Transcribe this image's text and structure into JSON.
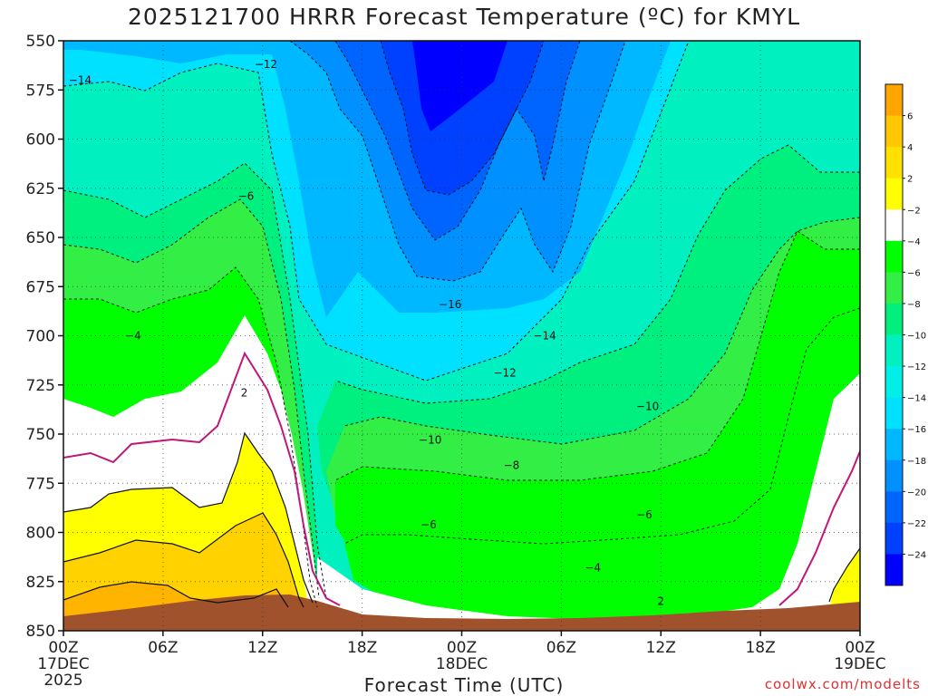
{
  "title": "2025121700 HRRR Forecast Temperature (ºC) for KMYL",
  "xlabel": "Forecast Time (UTC)",
  "credit": "coolwx.com/modelts",
  "colors": {
    "ground": "#a0522d",
    "frame": "#111111",
    "credit": "#e03030",
    "freezing_line": "#c0177a"
  },
  "chart_data": {
    "type": "heatmap",
    "title": "2025121700 HRRR Forecast Temperature (ºC) for KMYL",
    "xlabel": "Forecast Time (UTC)",
    "ylabel": "",
    "y_axis": "pressure (hPa), inverted",
    "ylim": [
      850,
      550
    ],
    "y_ticks": [
      550,
      575,
      600,
      625,
      650,
      675,
      700,
      725,
      750,
      775,
      800,
      825,
      850
    ],
    "x_ticks": [
      {
        "hour": 0,
        "label": "00Z",
        "sub": "17DEC",
        "sub2": "2025"
      },
      {
        "hour": 6,
        "label": "06Z",
        "sub": "",
        "sub2": ""
      },
      {
        "hour": 12,
        "label": "12Z",
        "sub": "",
        "sub2": ""
      },
      {
        "hour": 18,
        "label": "18Z",
        "sub": "",
        "sub2": ""
      },
      {
        "hour": 24,
        "label": "00Z",
        "sub": "18DEC",
        "sub2": ""
      },
      {
        "hour": 30,
        "label": "06Z",
        "sub": "",
        "sub2": ""
      },
      {
        "hour": 36,
        "label": "12Z",
        "sub": "",
        "sub2": ""
      },
      {
        "hour": 42,
        "label": "18Z",
        "sub": "",
        "sub2": ""
      },
      {
        "hour": 48,
        "label": "00Z",
        "sub": "19DEC",
        "sub2": ""
      }
    ],
    "xlim": [
      0,
      48
    ],
    "grid": true,
    "colorbar": {
      "position": "right",
      "labels": [
        "6",
        "4",
        "2",
        "−2",
        "−4",
        "−6",
        "−8",
        "−10",
        "−12",
        "−14",
        "−16",
        "−18",
        "−20",
        "−22",
        "−24"
      ],
      "colors": [
        "#ffa500",
        "#ffc800",
        "#ffe100",
        "#ffff00",
        "#ffffff",
        "#00ff00",
        "#33ee44",
        "#00f080",
        "#00f0c0",
        "#00f0e8",
        "#00e0ff",
        "#00b8ff",
        "#0090ff",
        "#0064ff",
        "#0040ff",
        "#0000ff"
      ]
    },
    "contour_labels": [
      {
        "text": "−14",
        "hour": 1.0,
        "p": 570
      },
      {
        "text": "−12",
        "hour": 12.2,
        "p": 562
      },
      {
        "text": "−6",
        "hour": 11.0,
        "p": 629
      },
      {
        "text": "−4",
        "hour": 4.2,
        "p": 700
      },
      {
        "text": "2",
        "hour": 10.9,
        "p": 729
      },
      {
        "text": "−16",
        "hour": 23.3,
        "p": 684
      },
      {
        "text": "−14",
        "hour": 29.0,
        "p": 700
      },
      {
        "text": "−12",
        "hour": 26.6,
        "p": 719
      },
      {
        "text": "−10",
        "hour": 22.1,
        "p": 753
      },
      {
        "text": "−10",
        "hour": 35.2,
        "p": 736
      },
      {
        "text": "−8",
        "hour": 27.0,
        "p": 766
      },
      {
        "text": "−6",
        "hour": 22.0,
        "p": 796
      },
      {
        "text": "−6",
        "hour": 35.0,
        "p": 791
      },
      {
        "text": "−4",
        "hour": 31.9,
        "p": 818
      },
      {
        "text": "2",
        "hour": 36.0,
        "p": 835
      }
    ]
  }
}
